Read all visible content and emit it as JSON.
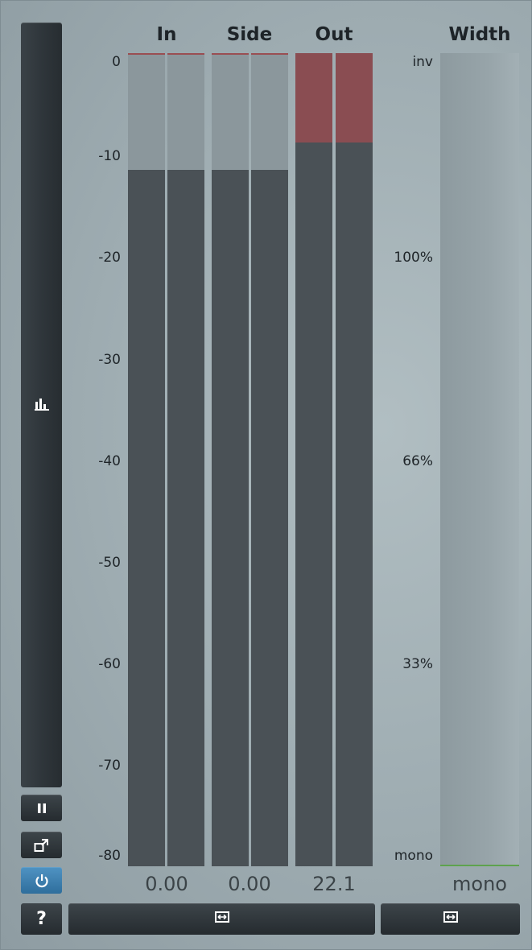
{
  "headers": {
    "in": "In",
    "side": "Side",
    "out": "Out",
    "width": "Width"
  },
  "db_scale": [
    "0",
    "-10",
    "-20",
    "-30",
    "-40",
    "-50",
    "-60",
    "-70",
    "-80"
  ],
  "width_scale": [
    "inv",
    "100%",
    "66%",
    "33%",
    "mono"
  ],
  "meters": {
    "in": {
      "value_text": "0.00",
      "level_db": -11.5,
      "peak_db": 0
    },
    "side": {
      "value_text": "0.00",
      "level_db": -11.5,
      "peak_db": 0
    },
    "out": {
      "value_text": "22.1",
      "level_db": -8.8,
      "peak_db": 0,
      "clipping": true
    }
  },
  "width_meter": {
    "value_text": "mono",
    "level": 0
  },
  "sidebar": {
    "icons": [
      "bar-chart-icon",
      "pause-icon",
      "popout-icon",
      "power-icon",
      "help-icon"
    ],
    "help_label": "?"
  },
  "bottom_buttons": [
    "expand-icon",
    "expand-icon"
  ],
  "colors": {
    "accent": "#3b7fb0",
    "clip": "#8a4d52",
    "meter_bg": "#4a5156",
    "meter_headroom": "#8b979c",
    "width_line": "#5ea24e"
  }
}
